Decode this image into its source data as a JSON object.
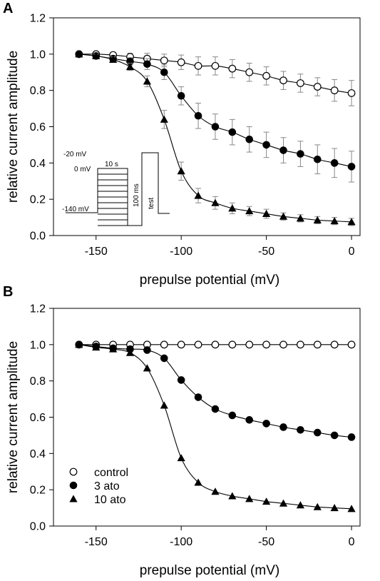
{
  "chart_data": [
    {
      "type": "scatter",
      "panel": "A",
      "xlabel": "prepulse potential (mV)",
      "ylabel": "relative current amplitude",
      "xlim": [
        -175,
        5
      ],
      "ylim": [
        0,
        1.2
      ],
      "xticks": [
        -150,
        -100,
        -50,
        0
      ],
      "yticks": [
        0.0,
        0.2,
        0.4,
        0.6,
        0.8,
        1.0,
        1.2
      ],
      "ytick_labels": [
        "0.0",
        "0.2",
        "0.4",
        "0.6",
        "0.8",
        "1.0",
        "1.2"
      ],
      "xtick_labels": [
        "-150",
        "-100",
        "-50",
        "0"
      ],
      "grid": false,
      "fit_lines": true,
      "error_bars": true,
      "x": [
        -160,
        -150,
        -140,
        -130,
        -120,
        -110,
        -100,
        -90,
        -80,
        -70,
        -60,
        -50,
        -40,
        -30,
        -20,
        -10,
        0
      ],
      "series": [
        {
          "marker": "open-circle",
          "values": [
            1.0,
            1.0,
            0.995,
            0.985,
            0.975,
            0.965,
            0.955,
            0.935,
            0.935,
            0.92,
            0.9,
            0.88,
            0.855,
            0.84,
            0.82,
            0.8,
            0.785
          ],
          "errors": [
            0.0,
            0.01,
            0.015,
            0.02,
            0.03,
            0.035,
            0.04,
            0.05,
            0.05,
            0.05,
            0.05,
            0.05,
            0.05,
            0.05,
            0.05,
            0.06,
            0.07
          ]
        },
        {
          "marker": "filled-circle",
          "values": [
            1.0,
            0.99,
            0.975,
            0.96,
            0.945,
            0.9,
            0.77,
            0.66,
            0.6,
            0.57,
            0.53,
            0.5,
            0.47,
            0.45,
            0.42,
            0.4,
            0.38
          ],
          "errors": [
            0.0,
            0.01,
            0.015,
            0.02,
            0.03,
            0.04,
            0.05,
            0.07,
            0.07,
            0.07,
            0.07,
            0.07,
            0.07,
            0.07,
            0.08,
            0.08,
            0.085
          ]
        },
        {
          "marker": "filled-triangle",
          "values": [
            1.0,
            0.99,
            0.97,
            0.93,
            0.85,
            0.64,
            0.355,
            0.22,
            0.18,
            0.15,
            0.135,
            0.12,
            0.105,
            0.095,
            0.085,
            0.08,
            0.075
          ],
          "errors": [
            0.0,
            0.01,
            0.015,
            0.02,
            0.03,
            0.05,
            0.05,
            0.04,
            0.035,
            0.03,
            0.025,
            0.025,
            0.02,
            0.02,
            0.02,
            0.02,
            0.02
          ]
        }
      ],
      "protocol_labels": {
        "v1": "-20 mV",
        "v2": "0 mV",
        "v3": "-140 mV",
        "dur1": "10 s",
        "dur2": "100 ms",
        "test": "test"
      }
    },
    {
      "type": "scatter",
      "panel": "B",
      "xlabel": "prepulse potential (mV)",
      "ylabel": "relative current amplitude",
      "xlim": [
        -175,
        5
      ],
      "ylim": [
        0,
        1.2
      ],
      "xticks": [
        -150,
        -100,
        -50,
        0
      ],
      "yticks": [
        0.0,
        0.2,
        0.4,
        0.6,
        0.8,
        1.0,
        1.2
      ],
      "ytick_labels": [
        "0.0",
        "0.2",
        "0.4",
        "0.6",
        "0.8",
        "1.0",
        "1.2"
      ],
      "xtick_labels": [
        "-150",
        "-100",
        "-50",
        "0"
      ],
      "grid": false,
      "fit_lines": true,
      "legend_position": "lower-left",
      "x": [
        -160,
        -150,
        -140,
        -130,
        -120,
        -110,
        -100,
        -90,
        -80,
        -70,
        -60,
        -50,
        -40,
        -30,
        -20,
        -10,
        0
      ],
      "series": [
        {
          "name": "control",
          "marker": "open-circle",
          "values": [
            1.0,
            1.0,
            1.0,
            1.0,
            1.0,
            1.0,
            1.0,
            1.0,
            1.0,
            1.0,
            1.0,
            1.0,
            1.0,
            1.0,
            1.0,
            1.0,
            1.0
          ]
        },
        {
          "name": "3 ato",
          "marker": "filled-circle",
          "values": [
            1.0,
            0.99,
            0.98,
            0.975,
            0.97,
            0.925,
            0.805,
            0.71,
            0.645,
            0.61,
            0.585,
            0.565,
            0.545,
            0.53,
            0.515,
            0.5,
            0.49
          ]
        },
        {
          "name": "10 ato",
          "marker": "filled-triangle",
          "values": [
            1.0,
            0.985,
            0.975,
            0.955,
            0.87,
            0.665,
            0.375,
            0.24,
            0.19,
            0.165,
            0.15,
            0.135,
            0.125,
            0.115,
            0.105,
            0.1,
            0.095
          ]
        }
      ]
    }
  ],
  "panels": {
    "a_letter": "A",
    "b_letter": "B"
  },
  "colors": {
    "ink": "#000000",
    "fill_open": "#ffffff",
    "error_bar": "#888888"
  }
}
